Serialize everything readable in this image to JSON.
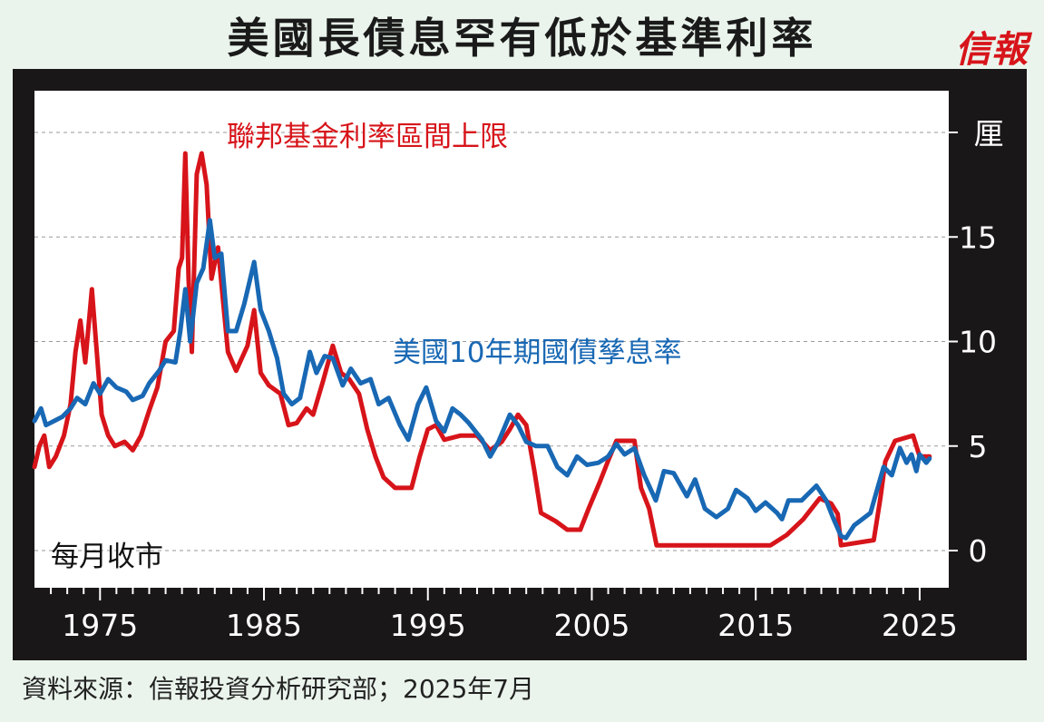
{
  "title": "美國長債息罕有低於基準利率",
  "logo": "信報",
  "source": "資料來源：信報投資分析研究部；2025年7月",
  "colors": {
    "fed": "#d7141a",
    "treasury": "#1868b4",
    "frame": "#1a1718",
    "background": "#eaf4ec"
  },
  "chart_data": {
    "type": "line",
    "title": "美國長債息罕有低於基準利率",
    "note": "每月收市",
    "y_unit": "厘",
    "ylim": [
      0,
      20
    ],
    "xlim": [
      1971,
      2026
    ],
    "yticks": [
      0,
      5,
      10,
      15
    ],
    "xticks": [
      1975,
      1985,
      1995,
      2005,
      2015,
      2025
    ],
    "grid": true,
    "legend": "inline",
    "series": [
      {
        "name": "聯邦基金利率區間上限",
        "color": "#d7141a",
        "points": [
          [
            1971.0,
            4.0
          ],
          [
            1971.3,
            5.0
          ],
          [
            1971.6,
            5.5
          ],
          [
            1971.9,
            4.0
          ],
          [
            1972.3,
            4.5
          ],
          [
            1972.8,
            5.5
          ],
          [
            1973.2,
            7.0
          ],
          [
            1973.5,
            9.5
          ],
          [
            1973.8,
            11.0
          ],
          [
            1974.1,
            9.0
          ],
          [
            1974.5,
            12.5
          ],
          [
            1974.8,
            9.5
          ],
          [
            1975.1,
            6.5
          ],
          [
            1975.5,
            5.5
          ],
          [
            1975.9,
            5.0
          ],
          [
            1976.5,
            5.2
          ],
          [
            1977.0,
            4.8
          ],
          [
            1977.5,
            5.5
          ],
          [
            1978.0,
            6.7
          ],
          [
            1978.5,
            7.8
          ],
          [
            1979.0,
            10.0
          ],
          [
            1979.5,
            10.5
          ],
          [
            1979.8,
            13.5
          ],
          [
            1980.0,
            14.0
          ],
          [
            1980.2,
            19.0
          ],
          [
            1980.4,
            13.0
          ],
          [
            1980.6,
            9.5
          ],
          [
            1980.9,
            18.0
          ],
          [
            1981.2,
            19.0
          ],
          [
            1981.5,
            17.5
          ],
          [
            1981.8,
            13.0
          ],
          [
            1982.2,
            14.5
          ],
          [
            1982.5,
            12.0
          ],
          [
            1982.8,
            9.5
          ],
          [
            1983.3,
            8.6
          ],
          [
            1984.0,
            9.8
          ],
          [
            1984.4,
            11.5
          ],
          [
            1984.8,
            8.5
          ],
          [
            1985.3,
            7.9
          ],
          [
            1986.0,
            7.5
          ],
          [
            1986.5,
            6.0
          ],
          [
            1987.0,
            6.1
          ],
          [
            1987.6,
            6.8
          ],
          [
            1988.0,
            6.5
          ],
          [
            1988.6,
            8.1
          ],
          [
            1989.2,
            9.8
          ],
          [
            1989.7,
            8.5
          ],
          [
            1990.2,
            8.2
          ],
          [
            1990.8,
            7.5
          ],
          [
            1991.3,
            5.8
          ],
          [
            1991.8,
            4.5
          ],
          [
            1992.3,
            3.5
          ],
          [
            1993.0,
            3.0
          ],
          [
            1994.0,
            3.0
          ],
          [
            1994.5,
            4.5
          ],
          [
            1995.0,
            5.8
          ],
          [
            1995.5,
            6.0
          ],
          [
            1996.0,
            5.3
          ],
          [
            1997.0,
            5.5
          ],
          [
            1998.0,
            5.5
          ],
          [
            1998.8,
            4.8
          ],
          [
            1999.5,
            5.2
          ],
          [
            2000.0,
            5.8
          ],
          [
            2000.5,
            6.5
          ],
          [
            2001.0,
            6.0
          ],
          [
            2001.5,
            3.8
          ],
          [
            2001.9,
            1.8
          ],
          [
            2002.8,
            1.4
          ],
          [
            2003.5,
            1.0
          ],
          [
            2004.3,
            1.0
          ],
          [
            2004.8,
            2.0
          ],
          [
            2005.5,
            3.3
          ],
          [
            2006.0,
            4.3
          ],
          [
            2006.5,
            5.25
          ],
          [
            2007.6,
            5.25
          ],
          [
            2008.0,
            3.0
          ],
          [
            2008.5,
            2.0
          ],
          [
            2008.95,
            0.25
          ],
          [
            2015.9,
            0.25
          ],
          [
            2016.9,
            0.75
          ],
          [
            2017.9,
            1.5
          ],
          [
            2018.9,
            2.5
          ],
          [
            2019.6,
            2.25
          ],
          [
            2020.0,
            1.75
          ],
          [
            2020.2,
            0.25
          ],
          [
            2022.2,
            0.5
          ],
          [
            2022.6,
            2.5
          ],
          [
            2022.9,
            4.25
          ],
          [
            2023.5,
            5.25
          ],
          [
            2024.6,
            5.5
          ],
          [
            2024.8,
            5.0
          ],
          [
            2025.0,
            4.5
          ],
          [
            2025.6,
            4.5
          ]
        ]
      },
      {
        "name": "美國10年期國債孳息率",
        "color": "#1868b4",
        "points": [
          [
            1971.0,
            6.2
          ],
          [
            1971.4,
            6.8
          ],
          [
            1971.7,
            6.0
          ],
          [
            1972.2,
            6.2
          ],
          [
            1972.7,
            6.4
          ],
          [
            1973.2,
            6.8
          ],
          [
            1973.6,
            7.3
          ],
          [
            1974.1,
            7.0
          ],
          [
            1974.6,
            8.0
          ],
          [
            1975.0,
            7.5
          ],
          [
            1975.5,
            8.2
          ],
          [
            1976.0,
            7.8
          ],
          [
            1976.6,
            7.6
          ],
          [
            1977.0,
            7.2
          ],
          [
            1977.6,
            7.4
          ],
          [
            1978.0,
            8.0
          ],
          [
            1978.6,
            8.6
          ],
          [
            1979.0,
            9.1
          ],
          [
            1979.6,
            9.0
          ],
          [
            1979.9,
            10.5
          ],
          [
            1980.2,
            12.5
          ],
          [
            1980.5,
            10.0
          ],
          [
            1980.9,
            12.8
          ],
          [
            1981.3,
            13.5
          ],
          [
            1981.7,
            15.8
          ],
          [
            1982.0,
            14.0
          ],
          [
            1982.4,
            14.2
          ],
          [
            1982.8,
            10.5
          ],
          [
            1983.3,
            10.5
          ],
          [
            1983.8,
            11.8
          ],
          [
            1984.4,
            13.8
          ],
          [
            1984.8,
            11.5
          ],
          [
            1985.3,
            10.5
          ],
          [
            1985.8,
            9.2
          ],
          [
            1986.2,
            7.5
          ],
          [
            1986.7,
            7.0
          ],
          [
            1987.2,
            7.3
          ],
          [
            1987.8,
            9.5
          ],
          [
            1988.2,
            8.5
          ],
          [
            1988.7,
            9.3
          ],
          [
            1989.2,
            9.2
          ],
          [
            1989.8,
            7.9
          ],
          [
            1990.3,
            8.7
          ],
          [
            1990.9,
            8.0
          ],
          [
            1991.5,
            8.2
          ],
          [
            1992.0,
            7.0
          ],
          [
            1992.6,
            7.3
          ],
          [
            1993.3,
            6.0
          ],
          [
            1993.8,
            5.3
          ],
          [
            1994.4,
            7.0
          ],
          [
            1994.9,
            7.8
          ],
          [
            1995.5,
            6.2
          ],
          [
            1996.0,
            5.7
          ],
          [
            1996.5,
            6.8
          ],
          [
            1997.0,
            6.5
          ],
          [
            1997.5,
            6.1
          ],
          [
            1998.3,
            5.3
          ],
          [
            1998.8,
            4.5
          ],
          [
            1999.3,
            5.2
          ],
          [
            2000.0,
            6.5
          ],
          [
            2000.5,
            6.0
          ],
          [
            2001.0,
            5.2
          ],
          [
            2001.6,
            5.0
          ],
          [
            2002.3,
            5.0
          ],
          [
            2002.9,
            4.0
          ],
          [
            2003.5,
            3.6
          ],
          [
            2004.1,
            4.5
          ],
          [
            2004.7,
            4.1
          ],
          [
            2005.4,
            4.2
          ],
          [
            2006.0,
            4.5
          ],
          [
            2006.5,
            5.1
          ],
          [
            2007.0,
            4.6
          ],
          [
            2007.6,
            4.9
          ],
          [
            2008.2,
            3.6
          ],
          [
            2008.9,
            2.4
          ],
          [
            2009.4,
            3.8
          ],
          [
            2010.0,
            3.7
          ],
          [
            2010.8,
            2.6
          ],
          [
            2011.3,
            3.4
          ],
          [
            2011.9,
            2.0
          ],
          [
            2012.6,
            1.6
          ],
          [
            2013.3,
            2.0
          ],
          [
            2013.8,
            2.9
          ],
          [
            2014.5,
            2.5
          ],
          [
            2015.0,
            1.9
          ],
          [
            2015.6,
            2.3
          ],
          [
            2016.3,
            1.8
          ],
          [
            2016.6,
            1.5
          ],
          [
            2017.0,
            2.4
          ],
          [
            2017.8,
            2.4
          ],
          [
            2018.7,
            3.1
          ],
          [
            2019.3,
            2.4
          ],
          [
            2019.7,
            1.6
          ],
          [
            2020.2,
            0.7
          ],
          [
            2020.5,
            0.6
          ],
          [
            2021.0,
            1.2
          ],
          [
            2021.5,
            1.5
          ],
          [
            2022.0,
            1.8
          ],
          [
            2022.4,
            2.9
          ],
          [
            2022.8,
            4.0
          ],
          [
            2023.3,
            3.6
          ],
          [
            2023.8,
            4.9
          ],
          [
            2024.2,
            4.2
          ],
          [
            2024.5,
            4.6
          ],
          [
            2024.8,
            3.8
          ],
          [
            2025.0,
            4.6
          ],
          [
            2025.4,
            4.2
          ],
          [
            2025.6,
            4.4
          ]
        ]
      }
    ]
  }
}
